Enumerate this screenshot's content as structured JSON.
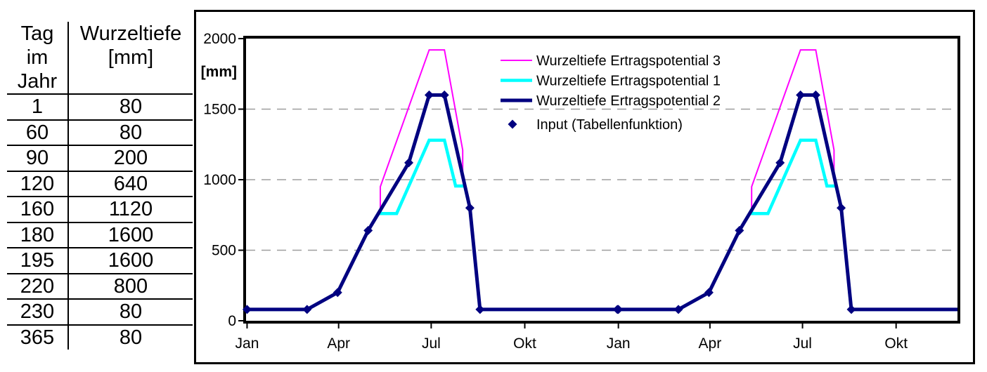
{
  "table": {
    "header": {
      "col1_lines": [
        "Tag",
        "im",
        "Jahr"
      ],
      "col2_lines": [
        "Wurzeltiefe",
        "[mm]"
      ]
    },
    "rows": [
      [
        "1",
        "80"
      ],
      [
        "60",
        "80"
      ],
      [
        "90",
        "200"
      ],
      [
        "120",
        "640"
      ],
      [
        "160",
        "1120"
      ],
      [
        "180",
        "1600"
      ],
      [
        "195",
        "1600"
      ],
      [
        "220",
        "800"
      ],
      [
        "230",
        "80"
      ],
      [
        "365",
        "80"
      ]
    ]
  },
  "chart_data": {
    "type": "line",
    "title": "",
    "xlabel": "",
    "ylabel": "[mm]",
    "ylim": [
      0,
      2000
    ],
    "y_ticks": [
      0,
      500,
      1000,
      1500,
      2000
    ],
    "xlim_days": [
      0,
      700
    ],
    "x_ticks": [
      {
        "day": 1,
        "label": "Jan"
      },
      {
        "day": 91,
        "label": "Apr"
      },
      {
        "day": 182,
        "label": "Jul"
      },
      {
        "day": 274,
        "label": "Okt"
      },
      {
        "day": 366,
        "label": "Jan"
      },
      {
        "day": 456,
        "label": "Apr"
      },
      {
        "day": 547,
        "label": "Jul"
      },
      {
        "day": 639,
        "label": "Okt"
      }
    ],
    "grid": {
      "horizontal_dashed_at": [
        500,
        1000,
        1500
      ],
      "color": "#9e9e9e"
    },
    "legend": {
      "position": "inside-top-center",
      "transparent": true,
      "entries": [
        {
          "label": "Wurzeltiefe Ertragspotential 3",
          "swatch": "line",
          "color": "#FF00FF"
        },
        {
          "label": "Wurzeltiefe Ertragspotential 1",
          "swatch": "line",
          "color": "#00FFFF"
        },
        {
          "label": "Wurzeltiefe Ertragspotential 2",
          "swatch": "line",
          "color": "#000080"
        },
        {
          "label": "Input (Tabellenfunktion)",
          "swatch": "diamond",
          "color": "#000080"
        }
      ]
    },
    "series": [
      {
        "name": "Wurzeltiefe Ertragspotential 3",
        "color": "#FF00FF",
        "width": 2,
        "points": [
          [
            1,
            80
          ],
          [
            60,
            80
          ],
          [
            90,
            200
          ],
          [
            120,
            640
          ],
          [
            132,
            784
          ],
          [
            132,
            950
          ],
          [
            180,
            1920
          ],
          [
            195,
            1920
          ],
          [
            213,
            1210
          ],
          [
            213,
            1025
          ],
          [
            220,
            800
          ],
          [
            230,
            80
          ],
          [
            365,
            80
          ],
          [
            366,
            80
          ],
          [
            425,
            80
          ],
          [
            455,
            200
          ],
          [
            485,
            640
          ],
          [
            497,
            784
          ],
          [
            497,
            950
          ],
          [
            545,
            1920
          ],
          [
            560,
            1920
          ],
          [
            578,
            1210
          ],
          [
            578,
            1025
          ],
          [
            585,
            800
          ],
          [
            595,
            80
          ],
          [
            700,
            80
          ]
        ]
      },
      {
        "name": "Wurzeltiefe Ertragspotential 1",
        "color": "#00FFFF",
        "width": 4.5,
        "points": [
          [
            1,
            80
          ],
          [
            60,
            80
          ],
          [
            90,
            200
          ],
          [
            120,
            640
          ],
          [
            132,
            784
          ],
          [
            132,
            760
          ],
          [
            148,
            760
          ],
          [
            180,
            1280
          ],
          [
            195,
            1280
          ],
          [
            206,
            955
          ],
          [
            215,
            955
          ],
          [
            220,
            800
          ],
          [
            230,
            80
          ],
          [
            365,
            80
          ],
          [
            366,
            80
          ],
          [
            425,
            80
          ],
          [
            455,
            200
          ],
          [
            485,
            640
          ],
          [
            497,
            784
          ],
          [
            497,
            760
          ],
          [
            513,
            760
          ],
          [
            545,
            1280
          ],
          [
            560,
            1280
          ],
          [
            571,
            955
          ],
          [
            580,
            955
          ],
          [
            585,
            800
          ],
          [
            595,
            80
          ],
          [
            700,
            80
          ]
        ]
      },
      {
        "name": "Wurzeltiefe Ertragspotential 2",
        "color": "#000080",
        "width": 5,
        "points": [
          [
            1,
            80
          ],
          [
            60,
            80
          ],
          [
            90,
            200
          ],
          [
            120,
            640
          ],
          [
            160,
            1120
          ],
          [
            180,
            1600
          ],
          [
            195,
            1600
          ],
          [
            220,
            800
          ],
          [
            230,
            80
          ],
          [
            365,
            80
          ],
          [
            366,
            80
          ],
          [
            425,
            80
          ],
          [
            455,
            200
          ],
          [
            485,
            640
          ],
          [
            525,
            1120
          ],
          [
            545,
            1600
          ],
          [
            560,
            1600
          ],
          [
            585,
            800
          ],
          [
            595,
            80
          ],
          [
            700,
            80
          ]
        ]
      },
      {
        "name": "Input (Tabellenfunktion)",
        "color": "#000080",
        "marker": "diamond",
        "marker_size": 13,
        "points": [
          [
            1,
            80
          ],
          [
            60,
            80
          ],
          [
            90,
            200
          ],
          [
            120,
            640
          ],
          [
            160,
            1120
          ],
          [
            180,
            1600
          ],
          [
            195,
            1600
          ],
          [
            220,
            800
          ],
          [
            230,
            80
          ],
          [
            365,
            80
          ],
          [
            366,
            80
          ],
          [
            425,
            80
          ],
          [
            455,
            200
          ],
          [
            485,
            640
          ],
          [
            525,
            1120
          ],
          [
            545,
            1600
          ],
          [
            560,
            1600
          ],
          [
            585,
            800
          ],
          [
            595,
            80
          ]
        ]
      }
    ],
    "frame_color": "#000000"
  }
}
